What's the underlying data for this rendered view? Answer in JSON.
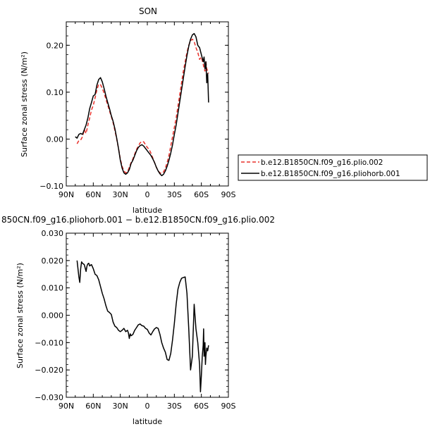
{
  "chart_data": [
    {
      "type": "line",
      "title": "SON",
      "xlabel": "latitude",
      "ylabel": "Surface zonal stress (N/m²)",
      "xlim": [
        90,
        -90
      ],
      "ylim": [
        -0.1,
        0.25
      ],
      "xticks": [
        90,
        60,
        30,
        0,
        -30,
        -60,
        -90
      ],
      "xtick_labels": [
        "90N",
        "60N",
        "30N",
        "0",
        "30S",
        "60S",
        "90S"
      ],
      "yticks": [
        -0.1,
        0.0,
        0.1,
        0.2
      ],
      "ytick_labels": [
        "−0.10",
        "0.00",
        "0.10",
        "0.20"
      ],
      "grid": false,
      "legend_position": "right",
      "series": [
        {
          "name": "b.e12.B1850CN.f09_g16.plio.002",
          "color": "#e8302a",
          "dash": "dashed",
          "x": [
            78,
            76,
            74,
            72,
            70,
            68,
            66,
            64,
            62,
            60,
            58,
            56,
            54,
            52,
            50,
            48,
            46,
            44,
            42,
            40,
            38,
            36,
            34,
            32,
            30,
            28,
            26,
            24,
            22,
            20,
            18,
            16,
            14,
            12,
            10,
            8,
            6,
            4,
            2,
            0,
            -2,
            -4,
            -6,
            -8,
            -10,
            -12,
            -14,
            -16,
            -18,
            -20,
            -22,
            -24,
            -26,
            -28,
            -30,
            -32,
            -34,
            -36,
            -38,
            -40,
            -42,
            -44,
            -46,
            -48,
            -50,
            -52,
            -54,
            -56,
            -58,
            -60,
            -62,
            -63,
            -64,
            -65,
            -66,
            -67,
            -68
          ],
          "y": [
            -0.01,
            -0.003,
            -0.002,
            0.005,
            0.02,
            0.012,
            0.03,
            0.045,
            0.062,
            0.072,
            0.088,
            0.105,
            0.117,
            0.116,
            0.108,
            0.098,
            0.085,
            0.073,
            0.06,
            0.048,
            0.035,
            0.018,
            0.0,
            -0.02,
            -0.042,
            -0.058,
            -0.068,
            -0.072,
            -0.07,
            -0.06,
            -0.05,
            -0.042,
            -0.032,
            -0.022,
            -0.015,
            -0.008,
            -0.005,
            -0.006,
            -0.012,
            -0.018,
            -0.022,
            -0.03,
            -0.04,
            -0.05,
            -0.06,
            -0.068,
            -0.072,
            -0.073,
            -0.07,
            -0.062,
            -0.05,
            -0.035,
            -0.015,
            0.005,
            0.025,
            0.045,
            0.07,
            0.095,
            0.12,
            0.145,
            0.165,
            0.185,
            0.2,
            0.21,
            0.213,
            0.208,
            0.195,
            0.185,
            0.17,
            0.175,
            0.16,
            0.15,
            0.145,
            0.165,
            0.15,
            0.145,
            0.14
          ]
        },
        {
          "name": "b.e12.B1850CN.f09_g16.pliohorb.001",
          "color": "#000000",
          "dash": "solid",
          "x": [
            80,
            78,
            76,
            74,
            72,
            70,
            68,
            66,
            64,
            62,
            60,
            58,
            56,
            54,
            52,
            50,
            48,
            46,
            44,
            42,
            40,
            38,
            36,
            34,
            32,
            30,
            28,
            26,
            24,
            22,
            20,
            18,
            16,
            14,
            12,
            10,
            8,
            6,
            4,
            2,
            0,
            -2,
            -4,
            -6,
            -8,
            -10,
            -12,
            -14,
            -16,
            -18,
            -20,
            -22,
            -24,
            -26,
            -28,
            -30,
            -32,
            -34,
            -36,
            -38,
            -40,
            -42,
            -44,
            -46,
            -48,
            -50,
            -52,
            -54,
            -56,
            -58,
            -60,
            -62,
            -63,
            -64,
            -65,
            -66,
            -67,
            -68
          ],
          "y": [
            0.005,
            0.002,
            0.01,
            0.012,
            0.01,
            0.02,
            0.03,
            0.045,
            0.065,
            0.078,
            0.092,
            0.095,
            0.115,
            0.127,
            0.131,
            0.122,
            0.108,
            0.092,
            0.078,
            0.065,
            0.05,
            0.038,
            0.022,
            0.002,
            -0.02,
            -0.045,
            -0.062,
            -0.072,
            -0.075,
            -0.072,
            -0.065,
            -0.052,
            -0.045,
            -0.035,
            -0.025,
            -0.018,
            -0.014,
            -0.012,
            -0.015,
            -0.02,
            -0.025,
            -0.03,
            -0.035,
            -0.042,
            -0.05,
            -0.06,
            -0.068,
            -0.074,
            -0.078,
            -0.075,
            -0.068,
            -0.058,
            -0.045,
            -0.03,
            -0.012,
            0.01,
            0.03,
            0.055,
            0.08,
            0.105,
            0.13,
            0.155,
            0.178,
            0.198,
            0.213,
            0.222,
            0.225,
            0.218,
            0.2,
            0.195,
            0.18,
            0.165,
            0.175,
            0.15,
            0.165,
            0.12,
            0.14,
            0.078
          ]
        }
      ]
    },
    {
      "type": "line",
      "title": "850CN.f09_g16.pliohorb.001 − b.e12.B1850CN.f09_g16.plio.002",
      "xlabel": "latitude",
      "ylabel": "Surface zonal stress (N/m²)",
      "xlim": [
        90,
        -90
      ],
      "ylim": [
        -0.03,
        0.03
      ],
      "xticks": [
        90,
        60,
        30,
        0,
        -30,
        -60,
        -90
      ],
      "xtick_labels": [
        "90N",
        "60N",
        "30N",
        "0",
        "30S",
        "60S",
        "90S"
      ],
      "yticks": [
        -0.03,
        -0.02,
        -0.01,
        0.0,
        0.01,
        0.02,
        0.03
      ],
      "ytick_labels": [
        "−0.030",
        "−0.020",
        "−0.010",
        "0.000",
        "0.010",
        "0.020",
        "0.030"
      ],
      "grid": false,
      "series": [
        {
          "color": "#000000",
          "dash": "solid",
          "x": [
            78,
            77,
            76,
            75,
            74,
            73,
            72,
            70,
            68,
            67,
            66,
            65,
            64,
            63,
            62,
            60,
            58,
            56,
            54,
            52,
            50,
            48,
            46,
            44,
            42,
            40,
            38,
            36,
            34,
            32,
            30,
            28,
            26,
            24,
            22,
            21,
            20,
            19,
            18,
            16,
            14,
            12,
            10,
            8,
            6,
            4,
            2,
            0,
            -2,
            -4,
            -6,
            -8,
            -10,
            -12,
            -14,
            -16,
            -18,
            -20,
            -22,
            -24,
            -26,
            -28,
            -30,
            -32,
            -34,
            -36,
            -38,
            -40,
            -42,
            -44,
            -46,
            -48,
            -50,
            -52,
            -54,
            -56,
            -58,
            -59,
            -60,
            -61,
            -62,
            -62.5,
            -63,
            -63.5,
            -64,
            -64.5,
            -65,
            -66,
            -67,
            -68
          ],
          "y": [
            0.02,
            0.017,
            0.014,
            0.012,
            0.017,
            0.0195,
            0.019,
            0.0185,
            0.016,
            0.018,
            0.0188,
            0.019,
            0.018,
            0.0183,
            0.0185,
            0.017,
            0.015,
            0.0145,
            0.013,
            0.0105,
            0.008,
            0.006,
            0.0035,
            0.0015,
            0.001,
            0.0003,
            -0.0025,
            -0.004,
            -0.0045,
            -0.0055,
            -0.006,
            -0.0055,
            -0.0048,
            -0.006,
            -0.0055,
            -0.0065,
            -0.0085,
            -0.0068,
            -0.0075,
            -0.007,
            -0.0055,
            -0.0045,
            -0.0035,
            -0.0032,
            -0.0038,
            -0.004,
            -0.0048,
            -0.0052,
            -0.0065,
            -0.0072,
            -0.006,
            -0.005,
            -0.0045,
            -0.0048,
            -0.007,
            -0.01,
            -0.012,
            -0.0135,
            -0.0162,
            -0.0165,
            -0.014,
            -0.009,
            -0.003,
            0.004,
            0.0095,
            0.012,
            0.0135,
            0.0138,
            0.014,
            0.008,
            -0.005,
            -0.02,
            -0.015,
            0.004,
            -0.005,
            -0.01,
            -0.018,
            -0.028,
            -0.022,
            -0.015,
            -0.011,
            -0.005,
            -0.015,
            -0.012,
            -0.01,
            -0.018,
            -0.015,
            -0.012,
            -0.013,
            -0.011
          ]
        }
      ]
    }
  ]
}
